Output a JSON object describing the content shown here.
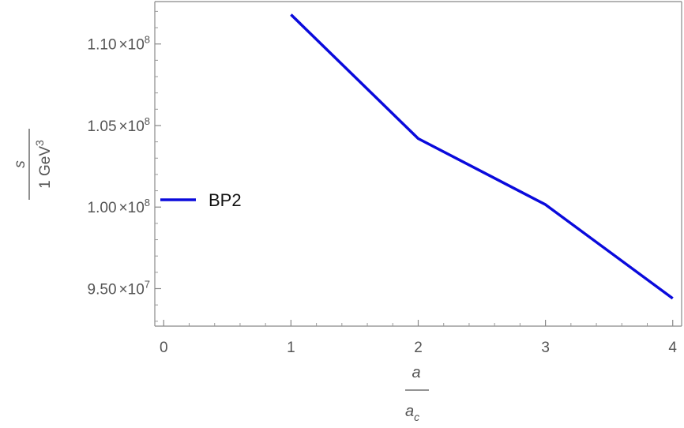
{
  "chart_data": {
    "type": "line",
    "xlim": [
      -0.07,
      4.07
    ],
    "ylim": [
      92700000,
      112600000
    ],
    "x_ticks": [
      0,
      1,
      2,
      3,
      4
    ],
    "x_tick_labels": [
      "0",
      "1",
      "2",
      "3",
      "4"
    ],
    "y_ticks": [
      95000000,
      100000000,
      105000000,
      110000000
    ],
    "y_tick_labels": [
      {
        "mantissa": "9.50",
        "exponent": "7"
      },
      {
        "mantissa": "1.00",
        "exponent": "8"
      },
      {
        "mantissa": "1.05",
        "exponent": "8"
      },
      {
        "mantissa": "1.10",
        "exponent": "8"
      }
    ],
    "times_symbol": "×10",
    "xlabel": {
      "numerator": "a",
      "denominator": "a",
      "denominator_sub": "c"
    },
    "ylabel": {
      "numerator": "s",
      "denominator": "1 GeV",
      "denominator_sup": "3"
    },
    "grid": false,
    "legend_position": "left-middle",
    "series": [
      {
        "name": "BP2",
        "color": "#0a0adc",
        "x": [
          1,
          2,
          3,
          4
        ],
        "y": [
          111800000,
          104200000,
          100150000,
          94400000
        ]
      }
    ]
  }
}
